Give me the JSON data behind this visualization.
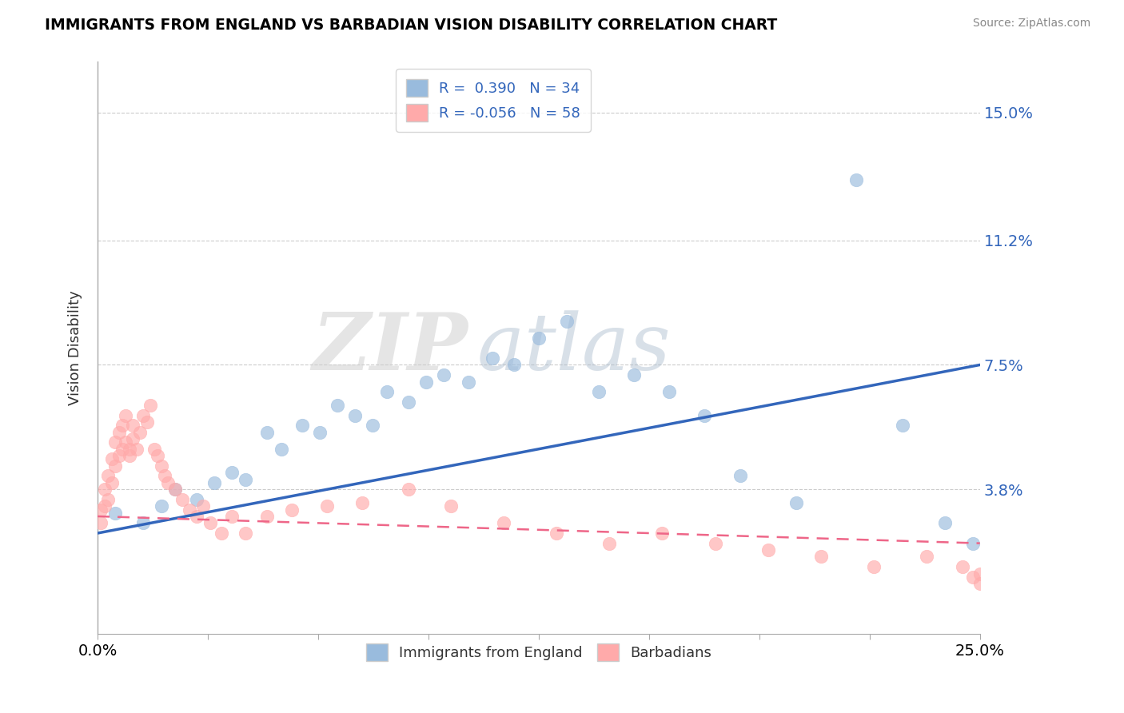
{
  "title": "IMMIGRANTS FROM ENGLAND VS BARBADIAN VISION DISABILITY CORRELATION CHART",
  "source": "Source: ZipAtlas.com",
  "ylabel": "Vision Disability",
  "x_min": 0.0,
  "x_max": 0.25,
  "y_min": -0.005,
  "y_max": 0.165,
  "y_ticks": [
    0.038,
    0.075,
    0.112,
    0.15
  ],
  "y_tick_labels": [
    "3.8%",
    "7.5%",
    "11.2%",
    "15.0%"
  ],
  "x_ticks": [
    0.0,
    0.03125,
    0.0625,
    0.09375,
    0.125,
    0.15625,
    0.1875,
    0.21875,
    0.25
  ],
  "x_tick_labels": [
    "0.0%",
    "",
    "",
    "",
    "",
    "",
    "",
    "",
    "25.0%"
  ],
  "legend_r1": "R =  0.390",
  "legend_n1": "N = 34",
  "legend_r2": "R = -0.056",
  "legend_n2": "N = 58",
  "color_blue": "#99BBDD",
  "color_pink": "#FFAAAA",
  "color_blue_line": "#3366BB",
  "color_pink_line": "#EE6688",
  "watermark_zip": "ZIP",
  "watermark_atlas": "atlas",
  "blue_line_x0": 0.0,
  "blue_line_y0": 0.025,
  "blue_line_x1": 0.25,
  "blue_line_y1": 0.075,
  "pink_line_x0": 0.0,
  "pink_line_y0": 0.03,
  "pink_line_x1": 0.25,
  "pink_line_y1": 0.022,
  "blue_scatter_x": [
    0.005,
    0.013,
    0.018,
    0.022,
    0.028,
    0.033,
    0.038,
    0.042,
    0.048,
    0.052,
    0.058,
    0.063,
    0.068,
    0.073,
    0.078,
    0.082,
    0.088,
    0.093,
    0.098,
    0.105,
    0.112,
    0.118,
    0.125,
    0.133,
    0.142,
    0.152,
    0.162,
    0.172,
    0.182,
    0.198,
    0.215,
    0.228,
    0.24,
    0.248
  ],
  "blue_scatter_y": [
    0.031,
    0.028,
    0.033,
    0.038,
    0.035,
    0.04,
    0.043,
    0.041,
    0.055,
    0.05,
    0.057,
    0.055,
    0.063,
    0.06,
    0.057,
    0.067,
    0.064,
    0.07,
    0.072,
    0.07,
    0.077,
    0.075,
    0.083,
    0.088,
    0.067,
    0.072,
    0.067,
    0.06,
    0.042,
    0.034,
    0.13,
    0.057,
    0.028,
    0.022
  ],
  "pink_scatter_x": [
    0.001,
    0.001,
    0.002,
    0.002,
    0.003,
    0.003,
    0.004,
    0.004,
    0.005,
    0.005,
    0.006,
    0.006,
    0.007,
    0.007,
    0.008,
    0.008,
    0.009,
    0.009,
    0.01,
    0.01,
    0.011,
    0.012,
    0.013,
    0.014,
    0.015,
    0.016,
    0.017,
    0.018,
    0.019,
    0.02,
    0.022,
    0.024,
    0.026,
    0.028,
    0.03,
    0.032,
    0.035,
    0.038,
    0.042,
    0.048,
    0.055,
    0.065,
    0.075,
    0.088,
    0.1,
    0.115,
    0.13,
    0.145,
    0.16,
    0.175,
    0.19,
    0.205,
    0.22,
    0.235,
    0.245,
    0.248,
    0.25,
    0.25
  ],
  "pink_scatter_y": [
    0.028,
    0.032,
    0.033,
    0.038,
    0.035,
    0.042,
    0.04,
    0.047,
    0.045,
    0.052,
    0.048,
    0.055,
    0.05,
    0.057,
    0.052,
    0.06,
    0.05,
    0.048,
    0.053,
    0.057,
    0.05,
    0.055,
    0.06,
    0.058,
    0.063,
    0.05,
    0.048,
    0.045,
    0.042,
    0.04,
    0.038,
    0.035,
    0.032,
    0.03,
    0.033,
    0.028,
    0.025,
    0.03,
    0.025,
    0.03,
    0.032,
    0.033,
    0.034,
    0.038,
    0.033,
    0.028,
    0.025,
    0.022,
    0.025,
    0.022,
    0.02,
    0.018,
    0.015,
    0.018,
    0.015,
    0.012,
    0.01,
    0.013
  ]
}
